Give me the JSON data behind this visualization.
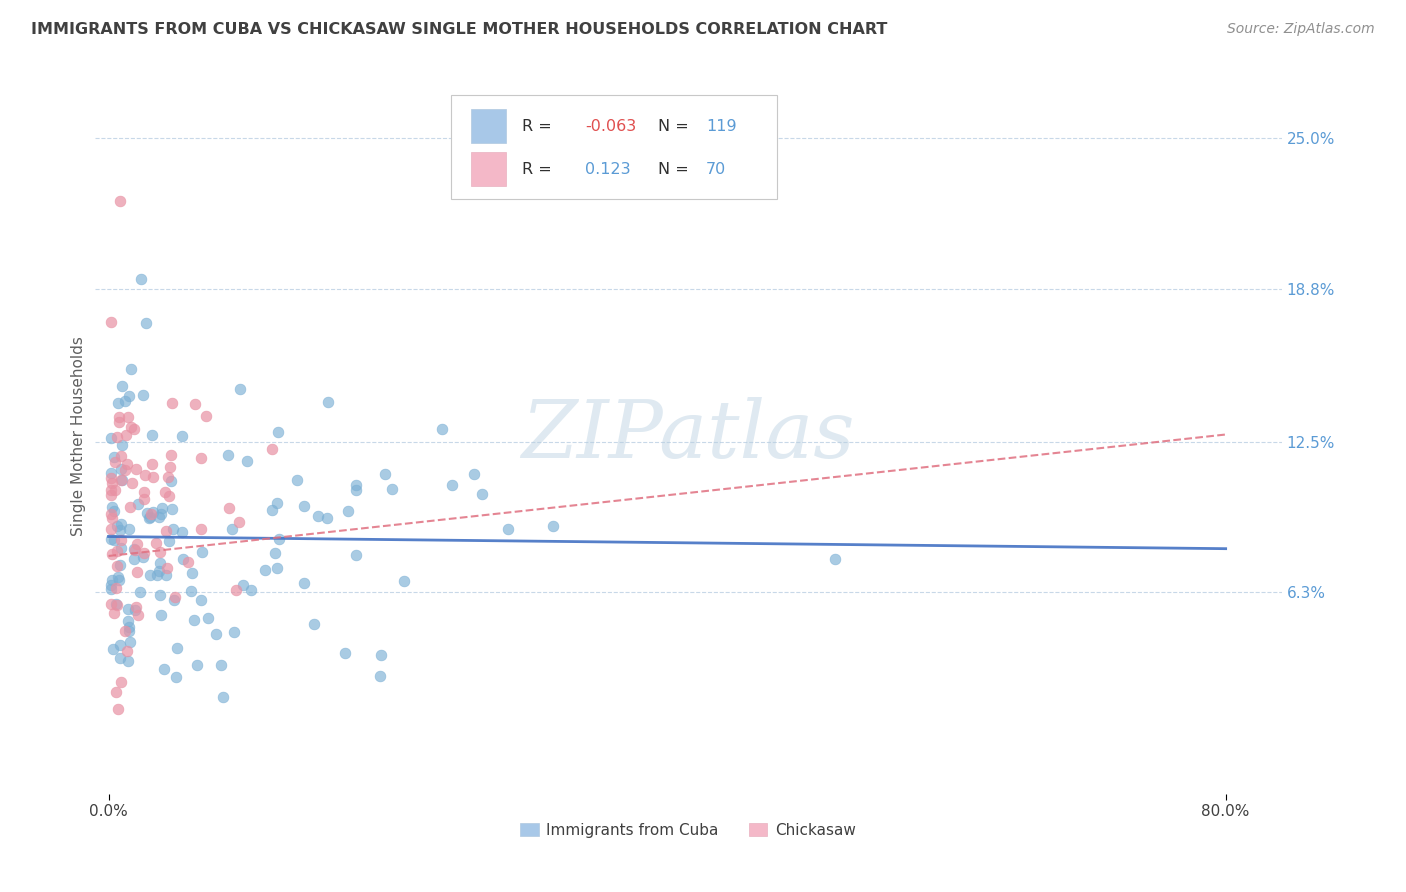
{
  "title": "IMMIGRANTS FROM CUBA VS CHICKASAW SINGLE MOTHER HOUSEHOLDS CORRELATION CHART",
  "source": "Source: ZipAtlas.com",
  "ylabel": "Single Mother Households",
  "ytick_vals": [
    0.063,
    0.125,
    0.188,
    0.25
  ],
  "ytick_labels": [
    "6.3%",
    "12.5%",
    "18.8%",
    "25.0%"
  ],
  "xtick_vals": [
    0.0,
    0.8
  ],
  "xtick_labels": [
    "0.0%",
    "80.0%"
  ],
  "xlim": [
    -0.01,
    0.84
  ],
  "ylim": [
    -0.02,
    0.275
  ],
  "legend_blue_R": "-0.063",
  "legend_blue_N": "119",
  "legend_pink_R": "0.123",
  "legend_pink_N": "70",
  "series_blue_name": "Immigrants from Cuba",
  "series_pink_name": "Chickasaw",
  "blue_color": "#7bafd4",
  "blue_trend_color": "#4472c4",
  "pink_color": "#e891a3",
  "pink_trend_color": "#e07080",
  "legend_blue_patch": "#a8c8e8",
  "legend_pink_patch": "#f4b8c8",
  "watermark": "ZIPatlas",
  "background_color": "#ffffff",
  "grid_color": "#c8d8e8",
  "title_color": "#404040",
  "ytick_color": "#5b9bd5",
  "R_neg_color": "#e05050",
  "R_pos_color": "#5b9bd5",
  "N_color": "#5b9bd5",
  "blue_trend_start_y": 0.086,
  "blue_trend_end_y": 0.081,
  "pink_trend_start_y": 0.078,
  "pink_trend_end_y": 0.128,
  "seed_blue": 42,
  "seed_pink": 99
}
